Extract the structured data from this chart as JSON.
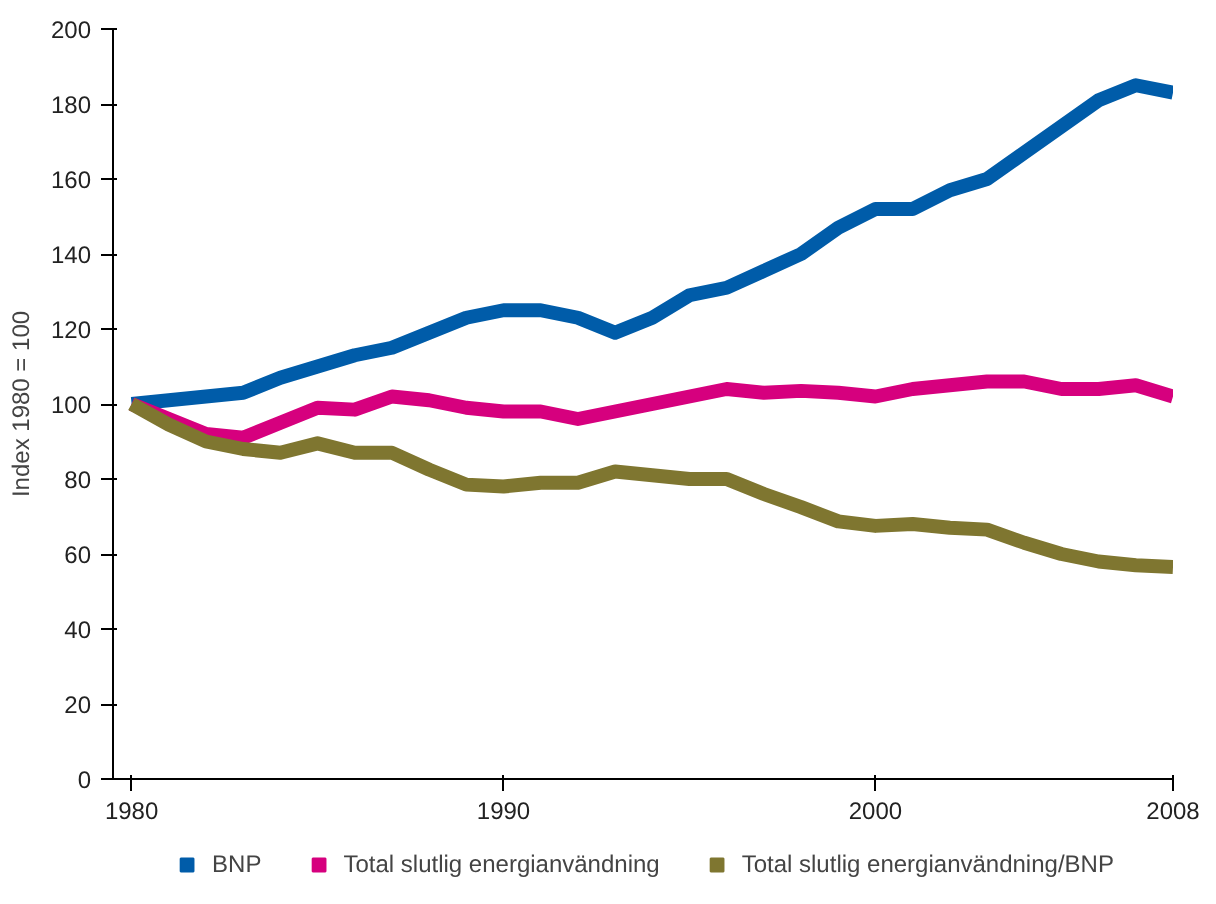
{
  "chart_data": {
    "type": "line",
    "ylabel": "Index 1980 = 100",
    "x": [
      1980,
      1981,
      1982,
      1983,
      1984,
      1985,
      1986,
      1987,
      1988,
      1989,
      1990,
      1991,
      1992,
      1993,
      1994,
      1995,
      1996,
      1997,
      1998,
      1999,
      2000,
      2001,
      2002,
      2003,
      2004,
      2005,
      2006,
      2007,
      2008
    ],
    "series": [
      {
        "name": "BNP",
        "color": "#005ca9",
        "values": [
          100,
          101,
          102,
          103,
          107,
          110,
          113,
          115,
          119,
          123,
          125,
          125,
          123,
          119,
          123,
          129,
          131,
          135.5,
          140,
          147,
          152,
          152,
          157,
          160,
          167,
          174,
          181,
          185,
          183
        ]
      },
      {
        "name": "Total slutlig energianvändning",
        "color": "#d6007e",
        "values": [
          100,
          96,
          92,
          91,
          95,
          99,
          98.5,
          102,
          101,
          99,
          98,
          98,
          96,
          98,
          100,
          102,
          104,
          103,
          103.5,
          103,
          102,
          104,
          105,
          106,
          106,
          104,
          104,
          105,
          102
        ]
      },
      {
        "name": "Total slutlig energianvändning/BNP",
        "color": "#7f7630",
        "values": [
          100,
          94.5,
          90,
          88,
          87,
          89.5,
          87,
          87,
          82.5,
          78.5,
          78,
          79,
          79,
          82,
          81,
          80,
          80,
          76,
          72.5,
          68.7,
          67.5,
          68,
          67,
          66.5,
          63,
          60,
          58,
          57,
          56.5
        ]
      }
    ],
    "xlim": [
      1979.5,
      2008
    ],
    "xticks": [
      1980,
      1990,
      2000,
      2008
    ],
    "ylim": [
      0,
      200
    ],
    "yticks": [
      0,
      20,
      40,
      60,
      80,
      100,
      120,
      140,
      160,
      180,
      200
    ],
    "grid": false,
    "legend": "bottom",
    "marker": "none",
    "line_style": "solid"
  }
}
